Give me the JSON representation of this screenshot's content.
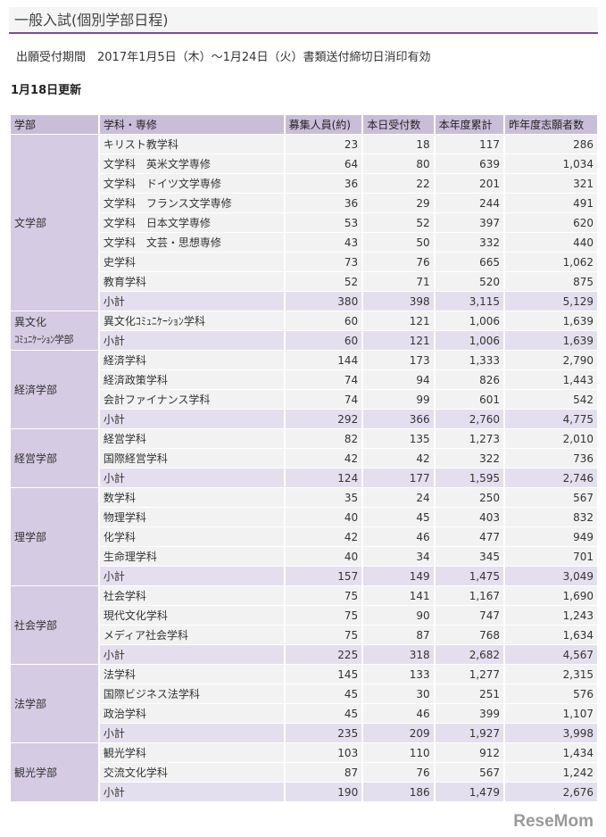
{
  "title": "一般入試(個別学部日程)",
  "period": "出願受付期間　2017年1月5日（木）～1月24日（火）書類送付締切日消印有効",
  "updated": "1月18日更新",
  "columns": [
    "学部",
    "学科・専修",
    "募集人員(約)",
    "本日受付数",
    "本年度累計",
    "昨年度志願者数"
  ],
  "faculties": [
    {
      "name": "文学部",
      "rows": [
        {
          "dept": "キリスト教学科",
          "cap": "23",
          "today": "18",
          "total": "117",
          "last": "286"
        },
        {
          "dept": "文学科　英米文学専修",
          "cap": "64",
          "today": "80",
          "total": "639",
          "last": "1,034"
        },
        {
          "dept": "文学科　ドイツ文学専修",
          "cap": "36",
          "today": "22",
          "total": "201",
          "last": "321"
        },
        {
          "dept": "文学科　フランス文学専修",
          "cap": "36",
          "today": "29",
          "total": "244",
          "last": "491"
        },
        {
          "dept": "文学科　日本文学専修",
          "cap": "53",
          "today": "52",
          "total": "397",
          "last": "620"
        },
        {
          "dept": "文学科　文芸・思想専修",
          "cap": "43",
          "today": "50",
          "total": "332",
          "last": "440"
        },
        {
          "dept": "史学科",
          "cap": "73",
          "today": "76",
          "total": "665",
          "last": "1,062"
        },
        {
          "dept": "教育学科",
          "cap": "52",
          "today": "71",
          "total": "520",
          "last": "875"
        },
        {
          "dept": "小計",
          "cap": "380",
          "today": "398",
          "total": "3,115",
          "last": "5,129",
          "subtotal": true
        }
      ]
    },
    {
      "name": "異文化",
      "name2": "ｺﾐｭﾆｹｰｼｮﾝ学部",
      "rows": [
        {
          "dept": "異文化ｺﾐｭﾆｹｰｼｮﾝ学科",
          "cap": "60",
          "today": "121",
          "total": "1,006",
          "last": "1,639"
        },
        {
          "dept": "小計",
          "cap": "60",
          "today": "121",
          "total": "1,006",
          "last": "1,639",
          "subtotal": true
        }
      ]
    },
    {
      "name": "経済学部",
      "rows": [
        {
          "dept": "経済学科",
          "cap": "144",
          "today": "173",
          "total": "1,333",
          "last": "2,790"
        },
        {
          "dept": "経済政策学科",
          "cap": "74",
          "today": "94",
          "total": "826",
          "last": "1,443"
        },
        {
          "dept": "会計ファイナンス学科",
          "cap": "74",
          "today": "99",
          "total": "601",
          "last": "542"
        },
        {
          "dept": "小計",
          "cap": "292",
          "today": "366",
          "total": "2,760",
          "last": "4,775",
          "subtotal": true
        }
      ]
    },
    {
      "name": "経営学部",
      "rows": [
        {
          "dept": "経営学科",
          "cap": "82",
          "today": "135",
          "total": "1,273",
          "last": "2,010"
        },
        {
          "dept": "国際経営学科",
          "cap": "42",
          "today": "42",
          "total": "322",
          "last": "736"
        },
        {
          "dept": "小計",
          "cap": "124",
          "today": "177",
          "total": "1,595",
          "last": "2,746",
          "subtotal": true
        }
      ]
    },
    {
      "name": "理学部",
      "rows": [
        {
          "dept": "数学科",
          "cap": "35",
          "today": "24",
          "total": "250",
          "last": "567"
        },
        {
          "dept": "物理学科",
          "cap": "40",
          "today": "45",
          "total": "403",
          "last": "832"
        },
        {
          "dept": "化学科",
          "cap": "42",
          "today": "46",
          "total": "477",
          "last": "949"
        },
        {
          "dept": "生命理学科",
          "cap": "40",
          "today": "34",
          "total": "345",
          "last": "701"
        },
        {
          "dept": "小計",
          "cap": "157",
          "today": "149",
          "total": "1,475",
          "last": "3,049",
          "subtotal": true
        }
      ]
    },
    {
      "name": "社会学部",
      "rows": [
        {
          "dept": "社会学科",
          "cap": "75",
          "today": "141",
          "total": "1,167",
          "last": "1,690"
        },
        {
          "dept": "現代文化学科",
          "cap": "75",
          "today": "90",
          "total": "747",
          "last": "1,243"
        },
        {
          "dept": "メディア社会学科",
          "cap": "75",
          "today": "87",
          "total": "768",
          "last": "1,634"
        },
        {
          "dept": "小計",
          "cap": "225",
          "today": "318",
          "total": "2,682",
          "last": "4,567",
          "subtotal": true
        }
      ]
    },
    {
      "name": "法学部",
      "rows": [
        {
          "dept": "法学科",
          "cap": "145",
          "today": "133",
          "total": "1,277",
          "last": "2,315"
        },
        {
          "dept": "国際ビジネス法学科",
          "cap": "45",
          "today": "30",
          "total": "251",
          "last": "576"
        },
        {
          "dept": "政治学科",
          "cap": "45",
          "today": "46",
          "total": "399",
          "last": "1,107"
        },
        {
          "dept": "小計",
          "cap": "235",
          "today": "209",
          "total": "1,927",
          "last": "3,998",
          "subtotal": true
        }
      ]
    },
    {
      "name": "観光学部",
      "rows": [
        {
          "dept": "観光学科",
          "cap": "103",
          "today": "110",
          "total": "912",
          "last": "1,434"
        },
        {
          "dept": "交流文化学科",
          "cap": "87",
          "today": "76",
          "total": "567",
          "last": "1,242"
        },
        {
          "dept": "小計",
          "cap": "190",
          "today": "186",
          "total": "1,479",
          "last": "2,676",
          "subtotal": true
        }
      ]
    }
  ],
  "watermark": "ReseMom"
}
